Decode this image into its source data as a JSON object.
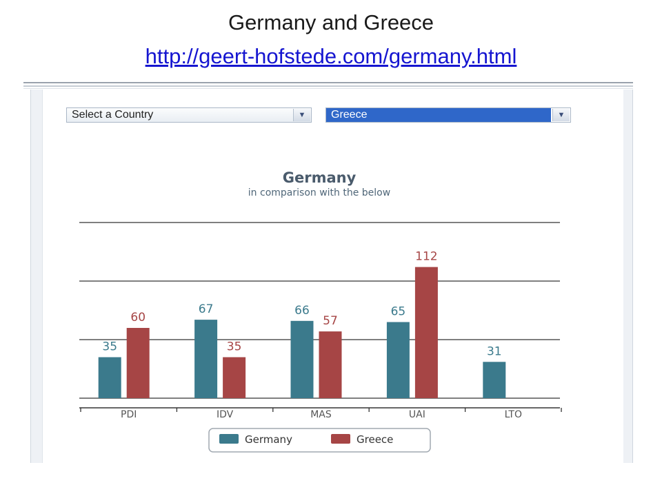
{
  "slide": {
    "title": "Germany and Greece",
    "link": "http://geert-hofstede.com/germany.html"
  },
  "controls": {
    "country_select_1": "Select a Country",
    "country_select_2": "Greece"
  },
  "icons": {
    "dropdown": "chevron-down-icon"
  },
  "colors": {
    "germany": "#3b7a8c",
    "greece": "#a64545",
    "grid": "#333333"
  },
  "chart_data": {
    "type": "bar",
    "title": "Germany",
    "subtitle": "in comparison with the below",
    "categories": [
      "PDI",
      "IDV",
      "MAS",
      "UAI",
      "LTO"
    ],
    "series": [
      {
        "name": "Germany",
        "values": [
          35,
          67,
          66,
          65,
          31
        ],
        "color": "#3b7a8c"
      },
      {
        "name": "Greece",
        "values": [
          60,
          35,
          57,
          112,
          null
        ],
        "color": "#a64545"
      }
    ],
    "ylim": [
      0,
      150
    ],
    "grid": true,
    "legend": "bottom"
  }
}
